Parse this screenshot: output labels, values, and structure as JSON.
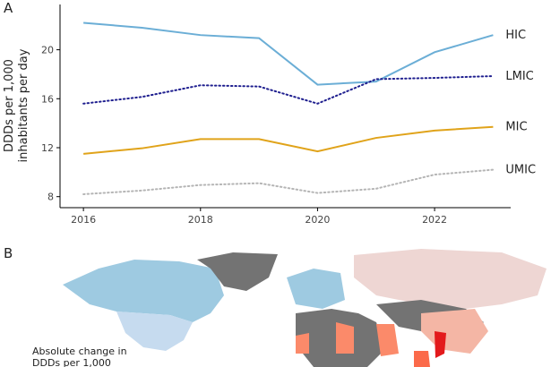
{
  "chart_data": {
    "type": "line",
    "ylabel": [
      "DDDs per 1,000",
      "inhabitants per day"
    ],
    "x": [
      2016,
      2017,
      2018,
      2019,
      2020,
      2021,
      2022,
      2023
    ],
    "xlim": [
      2015.6,
      2023.3
    ],
    "xticks": [
      2016,
      2018,
      2020,
      2022
    ],
    "ylim": [
      7.1,
      23.7
    ],
    "yticks": [
      8,
      12,
      16,
      20
    ],
    "series": [
      {
        "name": "HIC",
        "color": "#6baed6",
        "style": "solid",
        "values": [
          22.2,
          21.8,
          21.2,
          20.95,
          17.15,
          17.4,
          19.8,
          21.2
        ]
      },
      {
        "name": "LMIC",
        "color": "#1f1f8f",
        "style": "dotted",
        "values": [
          15.6,
          16.15,
          17.1,
          17.0,
          15.6,
          17.6,
          17.7,
          17.85
        ]
      },
      {
        "name": "MIC",
        "color": "#e0a31a",
        "style": "solid",
        "values": [
          11.5,
          11.95,
          12.7,
          12.7,
          11.7,
          12.8,
          13.4,
          13.7
        ]
      },
      {
        "name": "UMIC",
        "color": "#b5b5b5",
        "style": "dotted",
        "values": [
          8.2,
          8.5,
          8.95,
          9.1,
          8.3,
          8.65,
          9.8,
          10.2
        ]
      }
    ]
  },
  "panel_labels": [
    "A",
    "B"
  ],
  "map": {
    "legend_title": [
      "Absolute change in",
      "DDDs per 1,000"
    ]
  }
}
